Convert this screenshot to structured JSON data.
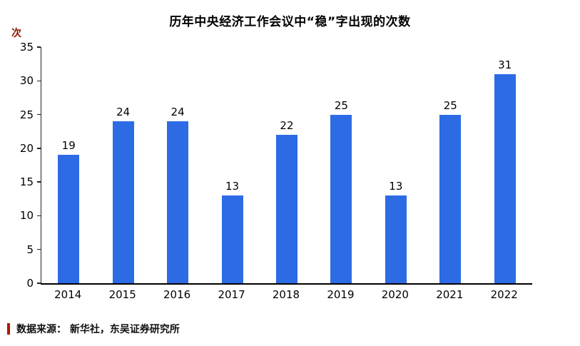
{
  "chart_data": {
    "type": "bar",
    "title": "历年中央经济工作会议中“稳”字出现的次数",
    "categories": [
      "2014",
      "2015",
      "2016",
      "2017",
      "2018",
      "2019",
      "2020",
      "2021",
      "2022"
    ],
    "values": [
      19,
      24,
      24,
      13,
      22,
      25,
      13,
      25,
      31
    ],
    "xlabel": "",
    "ylabel": "次",
    "ylim": [
      0,
      35
    ],
    "yticks": [
      0,
      5,
      10,
      15,
      20,
      25,
      30,
      35
    ],
    "grid": false,
    "legend": "none",
    "data_labels": true,
    "bar_color": "#2D6BE5"
  },
  "footer": {
    "source": "数据来源： 新华社，东吴证券研究所"
  },
  "colors": {
    "bar_blue": "#2D6BE5",
    "accent_red": "#AE1A00",
    "axis_black": "#000000",
    "unit_red": "#8B1500"
  }
}
